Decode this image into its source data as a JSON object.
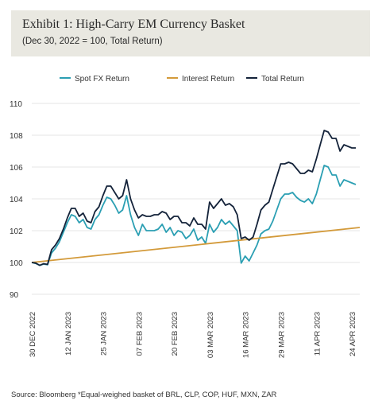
{
  "title": "Exhibit 1: High-Carry EM Currency Basket",
  "subtitle": "(Dec 30, 2022 = 100, Total Return)",
  "source": "Source: Bloomberg *Equal-weighed basket of BRL, CLP, COP, HUF, MXN, ZAR",
  "colors": {
    "spot": "#2b9fb3",
    "interest": "#d39a3a",
    "total": "#14233a",
    "grid": "#e5e5e5"
  },
  "chart_data": {
    "type": "line",
    "legend_position": "top-center",
    "grid": "horizontal",
    "xlim": [
      0,
      83
    ],
    "ylim": [
      90,
      110
    ],
    "y_ticks": [
      90,
      100,
      102,
      104,
      106,
      108,
      110
    ],
    "x_ticks": [
      {
        "pos": 0,
        "label": "30 DEC 2022"
      },
      {
        "pos": 9,
        "label": "12 JAN 2023"
      },
      {
        "pos": 18,
        "label": "25 JAN 2023"
      },
      {
        "pos": 27,
        "label": "07 FEB 2023"
      },
      {
        "pos": 36,
        "label": "20 FEB 2023"
      },
      {
        "pos": 45,
        "label": "03 MAR 2023"
      },
      {
        "pos": 54,
        "label": "16 MAR 2023"
      },
      {
        "pos": 63,
        "label": "29 MAR 2023"
      },
      {
        "pos": 72,
        "label": "11 APR 2023"
      },
      {
        "pos": 81,
        "label": "24 APR 2023"
      }
    ],
    "series": [
      {
        "name": "Spot FX Return",
        "color": "#2b9fb3",
        "values": [
          100.0,
          99.7,
          99.1,
          99.5,
          99.3,
          100.6,
          100.9,
          101.3,
          101.9,
          102.5,
          103.0,
          102.9,
          102.5,
          102.7,
          102.2,
          102.1,
          102.7,
          103.0,
          103.6,
          104.1,
          104.0,
          103.6,
          103.1,
          103.3,
          104.2,
          103.0,
          102.2,
          101.7,
          102.4,
          102.0,
          102.0,
          102.0,
          102.1,
          102.4,
          101.9,
          102.2,
          101.7,
          102.0,
          101.9,
          101.5,
          101.7,
          102.1,
          101.4,
          101.6,
          101.2,
          102.4,
          101.9,
          102.2,
          102.7,
          102.4,
          102.6,
          102.3,
          102.0,
          99.8,
          100.4,
          100.1,
          100.6,
          101.1,
          101.8,
          102.0,
          102.1,
          102.6,
          103.3,
          104.0,
          104.3,
          104.3,
          104.4,
          104.1,
          103.9,
          103.8,
          104.0,
          103.7,
          104.3,
          105.2,
          106.1,
          106.0,
          105.5,
          105.5,
          104.8,
          105.2,
          105.1,
          105.0,
          104.9
        ]
      },
      {
        "name": "Interest Return",
        "color": "#d39a3a",
        "values": [
          100.0,
          102.2
        ]
      },
      {
        "name": "Total Return",
        "color": "#14233a",
        "values": [
          100.0,
          99.8,
          99.1,
          99.6,
          99.4,
          100.8,
          101.1,
          101.5,
          102.1,
          102.8,
          103.4,
          103.4,
          102.9,
          103.1,
          102.6,
          102.5,
          103.2,
          103.5,
          104.2,
          104.8,
          104.8,
          104.4,
          104.0,
          104.2,
          105.2,
          104.0,
          103.3,
          102.8,
          103.0,
          102.9,
          102.9,
          103.0,
          103.0,
          103.2,
          103.1,
          102.7,
          102.9,
          102.9,
          102.5,
          102.5,
          102.3,
          102.8,
          102.4,
          102.4,
          102.1,
          103.8,
          103.4,
          103.7,
          104.0,
          103.6,
          103.7,
          103.5,
          103.0,
          101.5,
          101.6,
          101.4,
          101.6,
          102.4,
          103.3,
          103.6,
          103.8,
          104.6,
          105.4,
          106.2,
          106.2,
          106.3,
          106.2,
          105.9,
          105.6,
          105.6,
          105.8,
          105.7,
          106.5,
          107.4,
          108.3,
          108.2,
          107.8,
          107.8,
          107.0,
          107.4,
          107.3,
          107.2,
          107.2
        ]
      }
    ]
  }
}
